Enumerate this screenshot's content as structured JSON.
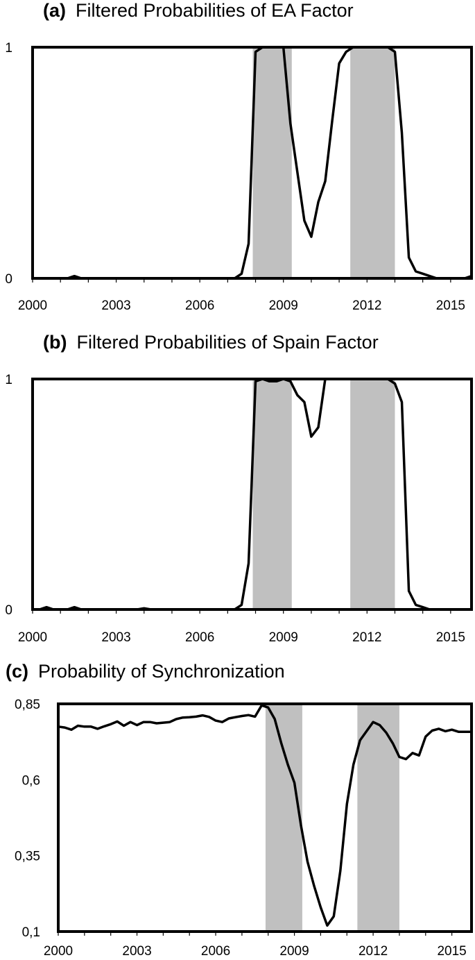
{
  "chart_data": [
    {
      "type": "line",
      "panel_label": "(a)",
      "title": "Filtered Probabilities of EA Factor",
      "xlim": [
        2000,
        2015.75
      ],
      "ylim": [
        0,
        1
      ],
      "x_ticks": [
        2000,
        2003,
        2006,
        2009,
        2012,
        2015
      ],
      "x_tick_labels": [
        "2000",
        "2003",
        "2006",
        "2009",
        "2012",
        "2015"
      ],
      "y_ticks": [
        0,
        1
      ],
      "y_tick_labels": [
        "0",
        "1"
      ],
      "shaded_periods": [
        [
          2007.9,
          2009.3
        ],
        [
          2011.4,
          2013.0
        ]
      ],
      "shade_color": "#c0c0c0",
      "line_color": "#000000",
      "series": [
        {
          "x": [
            2000,
            2001.25,
            2001.5,
            2001.75,
            2007.25,
            2007.5,
            2007.75,
            2008.0,
            2008.25,
            2008.5,
            2008.75,
            2009.0,
            2009.25,
            2009.5,
            2009.75,
            2010.0,
            2010.25,
            2010.5,
            2010.75,
            2011.0,
            2011.25,
            2011.5,
            2011.75,
            2012.0,
            2012.25,
            2012.5,
            2012.75,
            2013.0,
            2013.25,
            2013.5,
            2013.75,
            2014.0,
            2014.25,
            2014.5,
            2014.75,
            2015.0,
            2015.25,
            2015.5,
            2015.75
          ],
          "values": [
            0,
            0,
            0.01,
            0,
            0,
            0.02,
            0.15,
            0.98,
            1.0,
            1.0,
            1.0,
            1.0,
            0.67,
            0.46,
            0.25,
            0.18,
            0.33,
            0.42,
            0.68,
            0.93,
            0.98,
            1.0,
            1.0,
            1.0,
            1.0,
            1.0,
            1.0,
            0.98,
            0.63,
            0.09,
            0.03,
            0.02,
            0.01,
            0,
            0,
            0,
            0,
            0,
            0.01
          ]
        }
      ]
    },
    {
      "type": "line",
      "panel_label": "(b)",
      "title": "Filtered Probabilities of Spain Factor",
      "xlim": [
        2000,
        2015.75
      ],
      "ylim": [
        0,
        1
      ],
      "x_ticks": [
        2000,
        2003,
        2006,
        2009,
        2012,
        2015
      ],
      "x_tick_labels": [
        "2000",
        "2003",
        "2006",
        "2009",
        "2012",
        "2015"
      ],
      "y_ticks": [
        0,
        1
      ],
      "y_tick_labels": [
        "0",
        "1"
      ],
      "shaded_periods": [
        [
          2007.9,
          2009.3
        ],
        [
          2011.4,
          2013.0
        ]
      ],
      "shade_color": "#c0c0c0",
      "line_color": "#000000",
      "series": [
        {
          "x": [
            2000,
            2000.25,
            2000.5,
            2000.75,
            2001.25,
            2001.5,
            2001.75,
            2003.75,
            2004.0,
            2004.25,
            2007.25,
            2007.5,
            2007.75,
            2008.0,
            2008.25,
            2008.5,
            2008.75,
            2009.0,
            2009.25,
            2009.5,
            2009.75,
            2010.0,
            2010.25,
            2010.5,
            2010.75,
            2011.0,
            2011.25,
            2011.5,
            2011.75,
            2012.0,
            2012.25,
            2012.5,
            2012.75,
            2013.0,
            2013.25,
            2013.5,
            2013.75,
            2014.0,
            2014.25,
            2015.75
          ],
          "values": [
            0,
            0,
            0.01,
            0,
            0,
            0.01,
            0,
            0,
            0.005,
            0,
            0,
            0.02,
            0.2,
            0.99,
            1.0,
            0.99,
            0.99,
            1.0,
            0.99,
            0.93,
            0.9,
            0.75,
            0.79,
            1.0,
            1.0,
            1.0,
            1.0,
            1.0,
            1.0,
            1.0,
            1.0,
            1.0,
            1.0,
            0.98,
            0.9,
            0.08,
            0.02,
            0.01,
            0,
            0
          ]
        }
      ]
    },
    {
      "type": "line",
      "panel_label": "(c)",
      "title": "Probability of Synchronization",
      "xlim": [
        2000,
        2015.75
      ],
      "ylim": [
        0.1,
        0.85
      ],
      "x_ticks": [
        2000,
        2003,
        2006,
        2009,
        2012,
        2015
      ],
      "x_tick_labels": [
        "2000",
        "2003",
        "2006",
        "2009",
        "2012",
        "2015"
      ],
      "y_ticks": [
        0.85,
        0.6,
        0.35,
        0.1
      ],
      "y_tick_labels": [
        "0,85",
        "0,6",
        "0,35",
        "0,1"
      ],
      "shaded_periods": [
        [
          2007.9,
          2009.3
        ],
        [
          2011.4,
          2013.0
        ]
      ],
      "shade_color": "#c0c0c0",
      "line_color": "#000000",
      "series": [
        {
          "x": [
            2000,
            2000.25,
            2000.5,
            2000.75,
            2001.0,
            2001.25,
            2001.5,
            2001.75,
            2002.0,
            2002.25,
            2002.5,
            2002.75,
            2003.0,
            2003.25,
            2003.5,
            2003.75,
            2004.0,
            2004.25,
            2004.5,
            2004.75,
            2005.0,
            2005.25,
            2005.5,
            2005.75,
            2006.0,
            2006.25,
            2006.5,
            2006.75,
            2007.0,
            2007.25,
            2007.5,
            2007.75,
            2008.0,
            2008.25,
            2008.5,
            2008.75,
            2009.0,
            2009.25,
            2009.5,
            2009.75,
            2010.0,
            2010.25,
            2010.5,
            2010.75,
            2011.0,
            2011.25,
            2011.5,
            2011.75,
            2012.0,
            2012.25,
            2012.5,
            2012.75,
            2013.0,
            2013.25,
            2013.5,
            2013.75,
            2014.0,
            2014.25,
            2014.5,
            2014.75,
            2015.0,
            2015.25,
            2015.5,
            2015.75
          ],
          "values": [
            0.775,
            0.772,
            0.765,
            0.778,
            0.775,
            0.775,
            0.768,
            0.776,
            0.783,
            0.792,
            0.778,
            0.79,
            0.78,
            0.79,
            0.79,
            0.786,
            0.788,
            0.79,
            0.8,
            0.805,
            0.806,
            0.808,
            0.812,
            0.807,
            0.795,
            0.79,
            0.802,
            0.806,
            0.81,
            0.813,
            0.808,
            0.845,
            0.838,
            0.8,
            0.72,
            0.65,
            0.59,
            0.45,
            0.33,
            0.25,
            0.18,
            0.12,
            0.15,
            0.3,
            0.52,
            0.65,
            0.73,
            0.76,
            0.79,
            0.78,
            0.755,
            0.72,
            0.675,
            0.668,
            0.688,
            0.68,
            0.742,
            0.762,
            0.768,
            0.76,
            0.765,
            0.758,
            0.758,
            0.758
          ]
        }
      ]
    }
  ]
}
